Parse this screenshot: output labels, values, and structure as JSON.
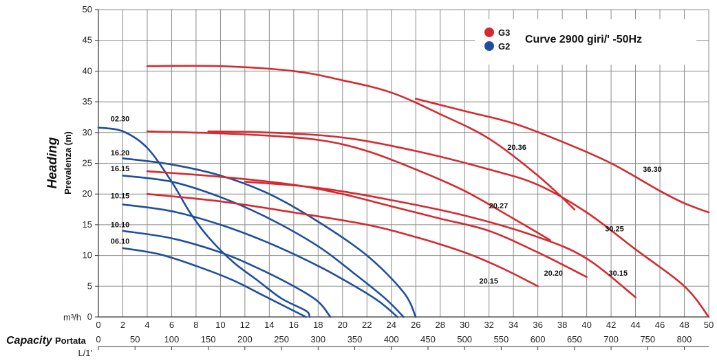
{
  "chart_data": {
    "type": "line",
    "title": "Curve 2900 giri/' -50Hz",
    "ylabel_en": "Heading",
    "ylabel_it": "Prevalenza (m)",
    "xlabel_en": "Capacity",
    "xlabel_it": "Portata",
    "x_unit_primary": "m³/h",
    "x_unit_secondary": "L/1'",
    "xlim": [
      0,
      50
    ],
    "ylim": [
      0,
      50
    ],
    "grid": true,
    "legend_position": "top-right",
    "x_ticks": [
      0,
      2,
      4,
      6,
      8,
      10,
      12,
      14,
      16,
      18,
      20,
      22,
      24,
      26,
      28,
      30,
      32,
      34,
      36,
      38,
      40,
      42,
      44,
      46,
      48,
      50
    ],
    "y_ticks": [
      0,
      5,
      10,
      15,
      20,
      25,
      30,
      35,
      40,
      45,
      50
    ],
    "x2_ticks": [
      0,
      50,
      100,
      150,
      200,
      250,
      300,
      350,
      400,
      450,
      500,
      550,
      600,
      650,
      700,
      750,
      800
    ],
    "legend": [
      {
        "name": "G3",
        "color": "#d42a2f"
      },
      {
        "name": "G2",
        "color": "#1f4f9c"
      }
    ],
    "series": [
      {
        "name": "02.30",
        "group": "G2",
        "label_at": [
          1.0,
          31.8
        ],
        "points": [
          [
            0,
            30.8
          ],
          [
            2,
            30.2
          ],
          [
            4,
            27.5
          ],
          [
            6,
            22
          ],
          [
            7.5,
            17
          ],
          [
            9,
            13
          ],
          [
            11,
            9
          ],
          [
            13,
            6
          ],
          [
            15,
            3
          ],
          [
            17,
            1
          ],
          [
            17.3,
            0
          ]
        ]
      },
      {
        "name": "16.20",
        "group": "G2",
        "label_at": [
          1.0,
          26.3
        ],
        "points": [
          [
            2,
            25.8
          ],
          [
            6,
            24.8
          ],
          [
            10,
            23
          ],
          [
            14,
            20
          ],
          [
            18,
            15.5
          ],
          [
            22,
            10
          ],
          [
            25,
            4
          ],
          [
            26,
            0
          ]
        ]
      },
      {
        "name": "16.15",
        "group": "G2",
        "label_at": [
          1.0,
          23.7
        ],
        "points": [
          [
            2,
            23
          ],
          [
            6,
            22
          ],
          [
            10,
            19.5
          ],
          [
            14,
            16
          ],
          [
            18,
            11.5
          ],
          [
            21,
            7
          ],
          [
            23.5,
            3
          ],
          [
            25,
            0
          ]
        ]
      },
      {
        "name": "10.15",
        "group": "G2",
        "label_at": [
          1.0,
          19.3
        ],
        "points": [
          [
            2,
            18.3
          ],
          [
            6,
            17.2
          ],
          [
            10,
            15
          ],
          [
            14,
            12
          ],
          [
            18,
            8.3
          ],
          [
            21,
            5
          ],
          [
            23,
            2.5
          ],
          [
            24.5,
            0
          ]
        ]
      },
      {
        "name": "10.10",
        "group": "G2",
        "label_at": [
          1.0,
          14.6
        ],
        "points": [
          [
            2,
            14
          ],
          [
            6,
            12.8
          ],
          [
            10,
            10.5
          ],
          [
            13,
            8
          ],
          [
            16,
            5
          ],
          [
            18,
            2.5
          ],
          [
            19,
            0
          ]
        ]
      },
      {
        "name": "06.10",
        "group": "G2",
        "label_at": [
          1.0,
          11.9
        ],
        "points": [
          [
            2,
            11.2
          ],
          [
            5,
            10.2
          ],
          [
            8,
            8.3
          ],
          [
            11,
            6
          ],
          [
            13.5,
            3.5
          ],
          [
            15.5,
            1.5
          ],
          [
            17,
            0
          ]
        ]
      },
      {
        "name": "20.36",
        "group": "G3",
        "label_at": [
          33.5,
          27.2
        ],
        "points": [
          [
            4,
            40.8
          ],
          [
            10,
            40.8
          ],
          [
            16,
            40
          ],
          [
            20,
            38.5
          ],
          [
            24,
            36.5
          ],
          [
            28,
            33
          ],
          [
            32,
            29
          ],
          [
            36,
            23
          ],
          [
            39,
            17.5
          ]
        ]
      },
      {
        "name": "36.30",
        "group": "G3",
        "label_at": [
          44.6,
          23.6
        ],
        "points": [
          [
            26,
            35.5
          ],
          [
            30,
            33.5
          ],
          [
            34,
            31.5
          ],
          [
            38,
            28.5
          ],
          [
            42,
            25
          ],
          [
            46,
            20.5
          ],
          [
            48,
            18.5
          ],
          [
            50,
            17
          ]
        ]
      },
      {
        "name": "20.27",
        "group": "G3",
        "label_at": [
          32,
          17.7
        ],
        "points": [
          [
            4,
            30.2
          ],
          [
            12,
            29.7
          ],
          [
            18,
            28.8
          ],
          [
            22,
            27
          ],
          [
            26,
            24
          ],
          [
            30,
            20.5
          ],
          [
            34,
            16
          ],
          [
            37,
            12.5
          ]
        ]
      },
      {
        "name": "30.25",
        "group": "G3",
        "label_at": [
          41.5,
          13.9
        ],
        "points": [
          [
            9,
            30.2
          ],
          [
            14,
            30
          ],
          [
            20,
            29.2
          ],
          [
            26,
            27
          ],
          [
            32,
            24
          ],
          [
            36,
            21.5
          ],
          [
            40,
            17
          ],
          [
            44,
            11
          ],
          [
            48,
            5
          ],
          [
            50,
            0
          ]
        ]
      },
      {
        "name": "20.20",
        "group": "G3",
        "label_at": [
          36.5,
          6.7
        ],
        "points": [
          [
            4,
            23.7
          ],
          [
            10,
            22.8
          ],
          [
            16,
            21.5
          ],
          [
            20,
            20
          ],
          [
            24,
            18
          ],
          [
            28,
            16
          ],
          [
            32,
            14
          ],
          [
            36,
            10.5
          ],
          [
            40,
            6.5
          ]
        ]
      },
      {
        "name": "30.15",
        "group": "G3",
        "label_at": [
          41.8,
          6.7
        ],
        "points": [
          [
            12,
            22
          ],
          [
            18,
            21
          ],
          [
            24,
            19
          ],
          [
            30,
            16.5
          ],
          [
            36,
            13
          ],
          [
            40,
            9.5
          ],
          [
            44,
            3.2
          ]
        ]
      },
      {
        "name": "20.15",
        "group": "G3",
        "label_at": [
          31.2,
          5.4
        ],
        "points": [
          [
            4,
            20
          ],
          [
            10,
            18.8
          ],
          [
            16,
            17
          ],
          [
            22,
            15
          ],
          [
            26,
            13
          ],
          [
            30,
            10.5
          ],
          [
            33,
            8
          ],
          [
            36,
            5
          ]
        ]
      }
    ]
  }
}
